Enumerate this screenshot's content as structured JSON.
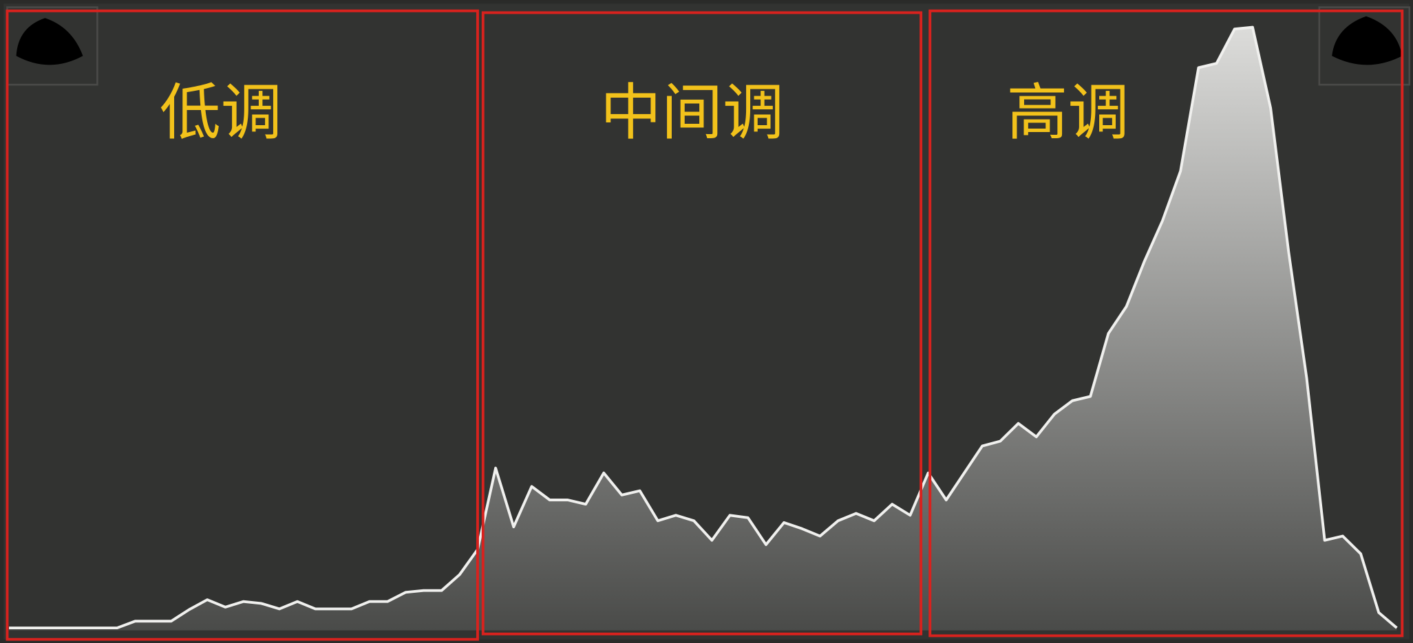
{
  "histogram": {
    "type": "area",
    "values": [
      0.4,
      0.4,
      0.4,
      0.4,
      0.4,
      0.4,
      0.4,
      1.5,
      1.5,
      1.5,
      3.4,
      5,
      3.8,
      4.7,
      4.4,
      3.5,
      4.7,
      3.5,
      3.5,
      3.5,
      4.7,
      4.7,
      6.2,
      6.5,
      6.5,
      9.1,
      13.2,
      26.5,
      16.9,
      23.5,
      21.3,
      21.3,
      20.6,
      25.7,
      22.1,
      22.8,
      17.9,
      18.8,
      17.9,
      14.7,
      18.8,
      18.4,
      14,
      17.6,
      16.6,
      15.4,
      17.9,
      19.1,
      17.9,
      20.6,
      18.8,
      25.7,
      21.3,
      25.7,
      30.1,
      30.9,
      33.8,
      31.6,
      35.3,
      37.5,
      38.2,
      48.5,
      52.9,
      60.3,
      66.9,
      75,
      91.9,
      92.6,
      98.2,
      98.5,
      85.3,
      61.8,
      41.2,
      14.7,
      15.4,
      12.5,
      2.9,
      0.4
    ],
    "ylim": [
      0,
      100
    ]
  },
  "regions": [
    {
      "label": "低调"
    },
    {
      "label": "中间调"
    },
    {
      "label": "高调"
    }
  ]
}
